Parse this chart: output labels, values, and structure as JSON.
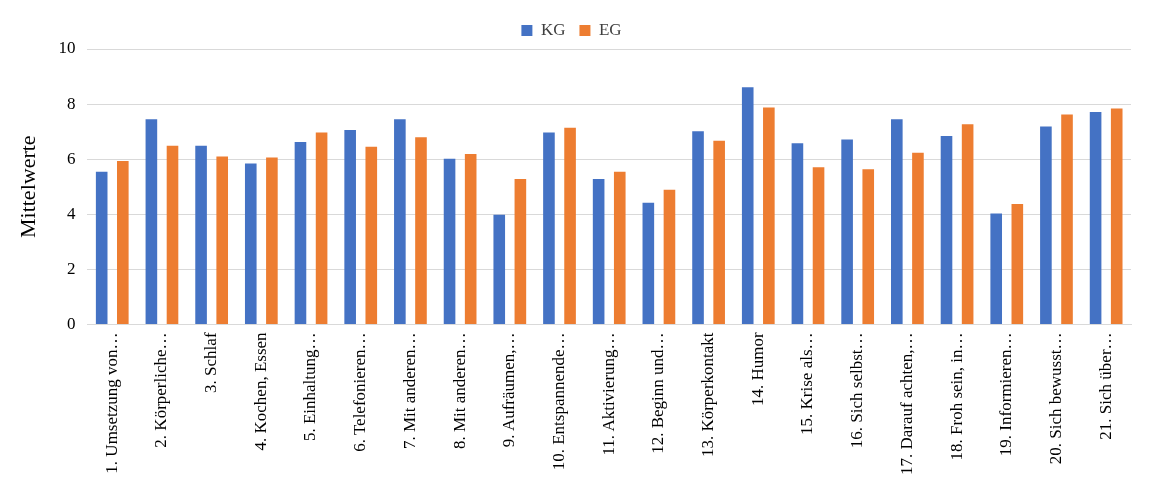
{
  "chart_data": {
    "type": "bar",
    "ylabel": "Mittelwerte",
    "categories": [
      "1. Umsetzung von…",
      "2. Körperliche…",
      "3. Schlaf",
      "4. Kochen, Essen",
      "5. Einhaltung…",
      "6. Telefonieren…",
      "7. Mit anderen…",
      "8. Mit anderen…",
      "9. Aufräumen,…",
      "10. Entspannende…",
      "11. Aktivierung…",
      "12. Beginn und…",
      "13. Körperkontakt",
      "14. Humor",
      "15. Krise als…",
      "16. Sich selbst…",
      "17. Darauf achten,…",
      "18. Froh sein, in…",
      "19. Informieren…",
      "20. Sich bewusst…",
      "21. Sich über…"
    ],
    "series": [
      {
        "name": "KG",
        "color": "#4472c4",
        "values": [
          5.54,
          7.45,
          6.49,
          5.84,
          6.62,
          7.06,
          7.45,
          6.02,
          3.98,
          6.97,
          5.28,
          4.42,
          7.01,
          8.61,
          6.58,
          6.71,
          7.45,
          6.84,
          4.03,
          7.19,
          7.71
        ]
      },
      {
        "name": "EG",
        "color": "#ed7d31",
        "values": [
          5.93,
          6.49,
          6.1,
          6.06,
          6.97,
          6.45,
          6.8,
          6.19,
          5.28,
          7.14,
          5.54,
          4.89,
          6.67,
          7.88,
          5.71,
          5.63,
          6.23,
          7.27,
          4.37,
          7.62,
          7.84
        ]
      }
    ],
    "ylim": [
      0,
      10
    ],
    "yticks": [
      0,
      2,
      4,
      6,
      8,
      10
    ],
    "grid": "y",
    "legend": "top"
  }
}
